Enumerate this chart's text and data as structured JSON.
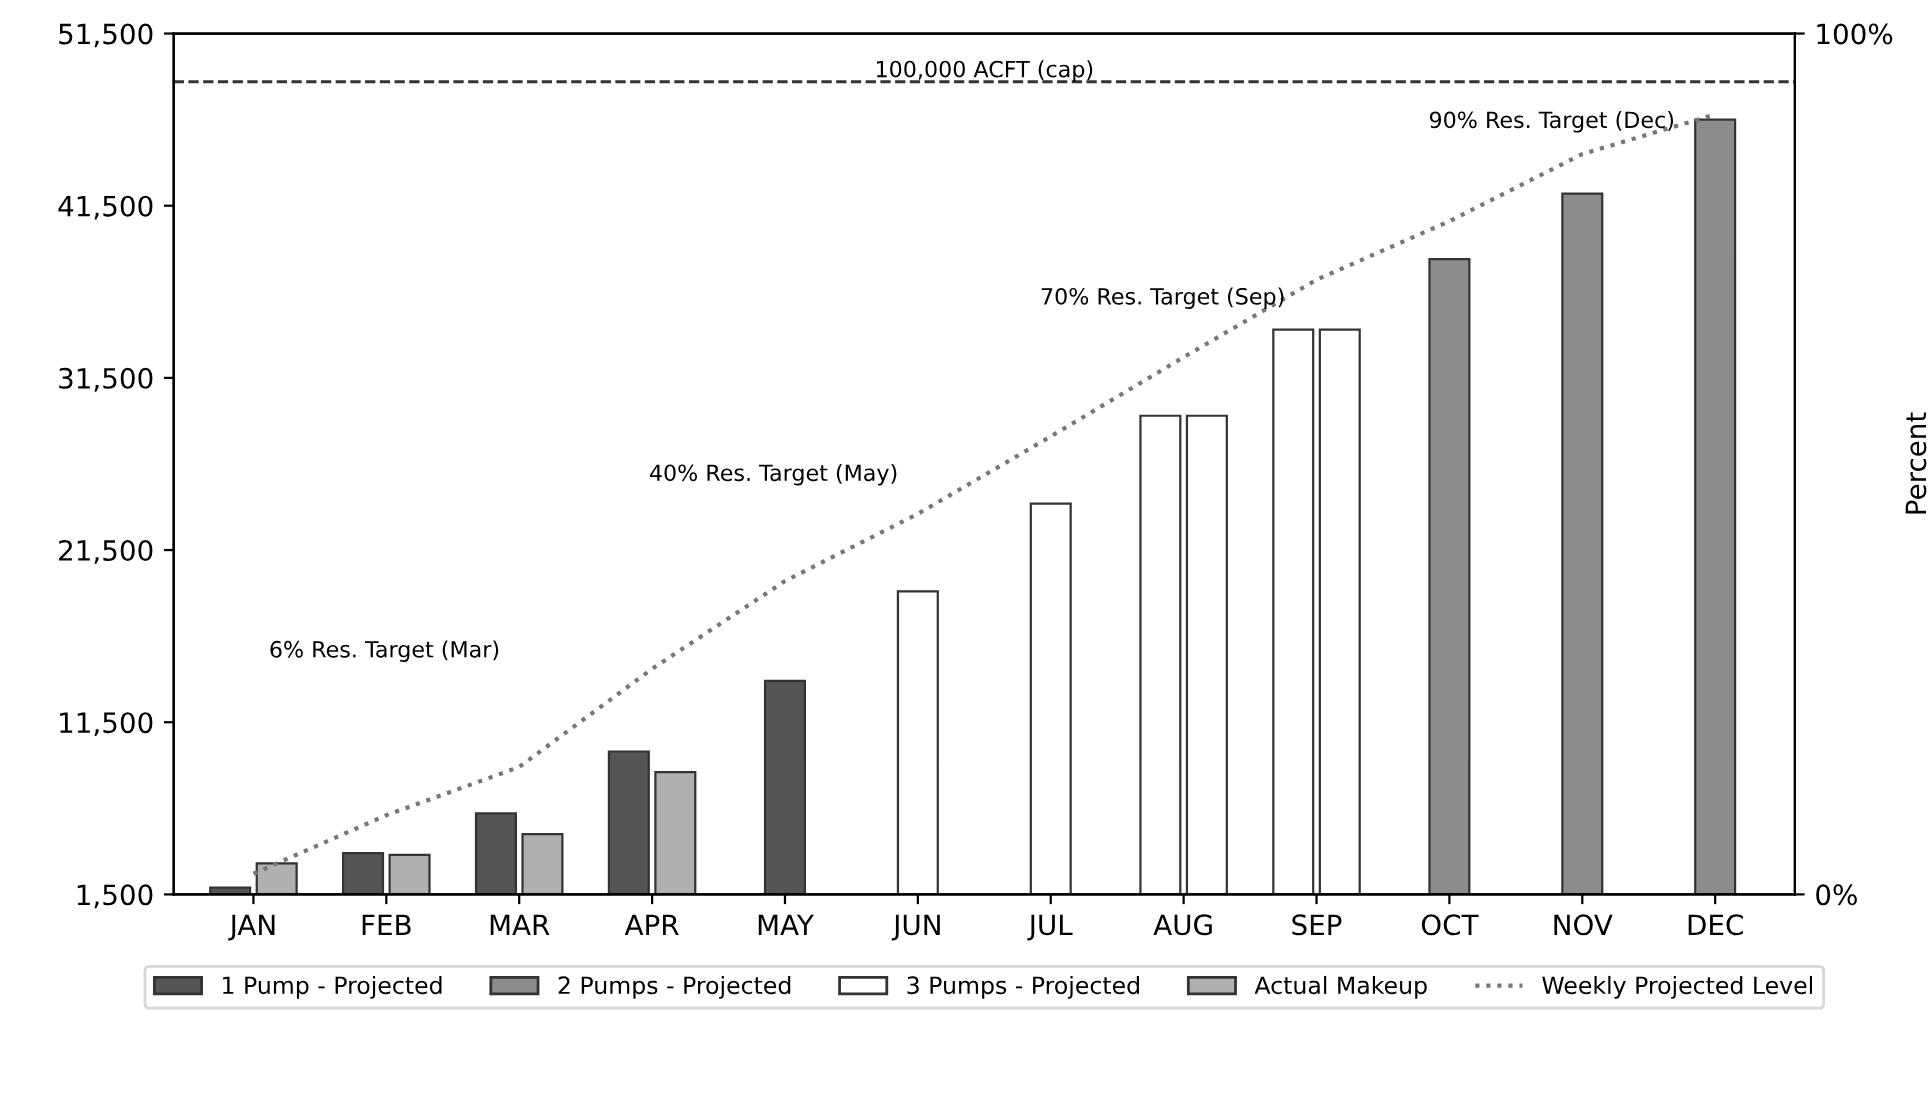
{
  "chart_data": {
    "type": "bar",
    "categories": [
      "JAN",
      "FEB",
      "MAR",
      "APR",
      "MAY",
      "JUN",
      "JUL",
      "AUG",
      "SEP",
      "OCT",
      "NOV",
      "DEC"
    ],
    "series": [
      {
        "name": "1 Pump - Projected",
        "color": "#555555",
        "values": [
          1900,
          3900,
          6200,
          9800,
          13900,
          null,
          null,
          null,
          null,
          null,
          null,
          null
        ]
      },
      {
        "name": "2 Pumps - Projected",
        "color": "#8c8c8c",
        "colors": [
          null,
          null,
          null,
          null,
          null,
          null,
          null,
          "#ffffff",
          "#ffffff",
          "#8c8c8c",
          "#8c8c8c",
          "#8c8c8c"
        ],
        "values": [
          null,
          null,
          null,
          null,
          null,
          null,
          null,
          29300,
          34300,
          38400,
          42200,
          46500
        ]
      },
      {
        "name": "3 Pumps - Projected",
        "color": "#ffffff",
        "values": [
          null,
          null,
          null,
          null,
          null,
          19100,
          24200,
          29300,
          34300,
          null,
          null,
          null
        ]
      },
      {
        "name": "Actual Makeup",
        "color": "#b0b0b0",
        "values": [
          3300,
          3800,
          5000,
          8600,
          null,
          null,
          null,
          null,
          null,
          null,
          null,
          null
        ]
      },
      {
        "name": "Weekly Projected Level",
        "type": "line",
        "line_style": "dotted",
        "color": "#777777",
        "values": [
          2700,
          6100,
          8900,
          14600,
          19700,
          23600,
          28100,
          32700,
          37200,
          40600,
          44500,
          46800
        ]
      }
    ],
    "ylim": [
      1500,
      51500
    ],
    "yticks": [
      {
        "value": 1500,
        "label": "1,500"
      },
      {
        "value": 11500,
        "label": "11,500"
      },
      {
        "value": 21500,
        "label": "21,500"
      },
      {
        "value": 31500,
        "label": "31,500"
      },
      {
        "value": 41500,
        "label": "41,500"
      },
      {
        "value": 51500,
        "label": "51,500"
      }
    ],
    "y2lim": [
      0,
      100
    ],
    "y2ticks": [
      {
        "value": 0,
        "label": "0%"
      },
      {
        "value": 100,
        "label": "100%"
      }
    ],
    "y2label": "Percent",
    "ref_lines": [
      {
        "axis": "y",
        "value": 48700,
        "label": "100,000 ACFT (cap)",
        "line_style": "dashed",
        "color": "#333333"
      }
    ],
    "annotations": [
      "6% Res. Target (Mar)",
      "40% Res. Target (May)",
      "70% Res. Target (Sep)",
      "90% Res. Target (Dec)"
    ],
    "legend": "bottom",
    "grid": false
  }
}
